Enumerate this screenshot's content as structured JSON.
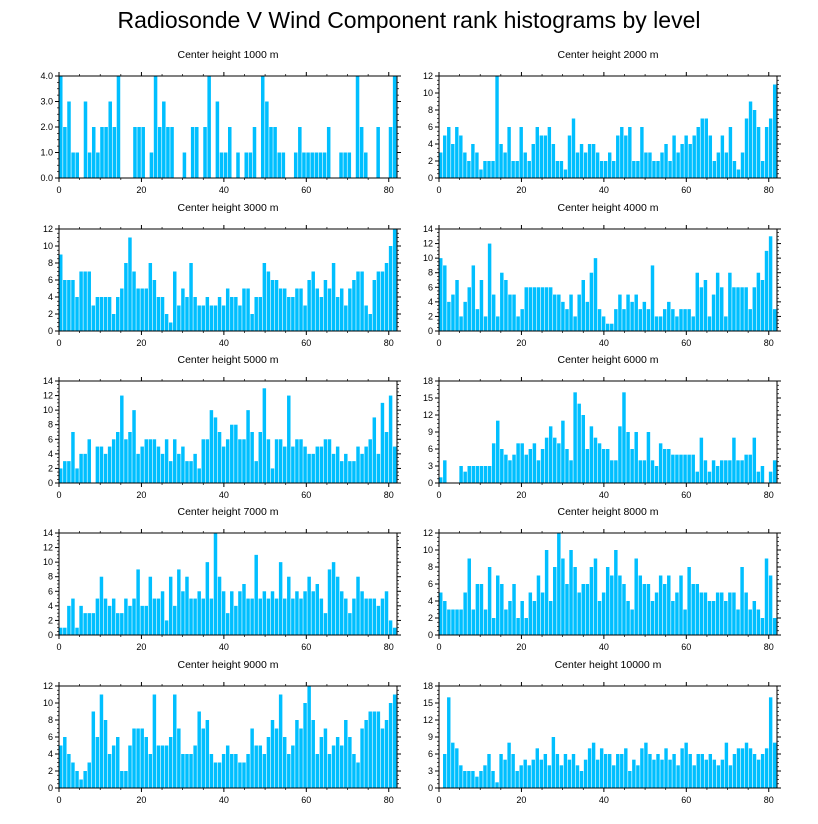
{
  "title": "Radiosonde V Wind Component rank histograms by level",
  "bar_color": "#00bfff",
  "bar_edge": "#ffffff",
  "chart_data": [
    {
      "type": "bar",
      "title": "Center height 1000 m",
      "xlim": [
        0,
        82
      ],
      "ylim": [
        0,
        4
      ],
      "yticks": [
        0,
        1,
        2,
        3,
        4
      ],
      "ytick_labels": [
        "0.0",
        "1.0",
        "2.0",
        "3.0",
        "4.0"
      ],
      "xticks": [
        0,
        20,
        40,
        60,
        80
      ],
      "xtick_labels": [
        "0",
        "20",
        "40",
        "60",
        "80"
      ],
      "values": [
        4,
        2,
        3,
        1,
        1,
        0,
        3,
        1,
        2,
        1,
        2,
        2,
        3,
        2,
        4,
        0,
        0,
        0,
        2,
        2,
        2,
        0,
        1,
        4,
        2,
        3,
        2,
        2,
        0,
        0,
        1,
        0,
        2,
        2,
        0,
        2,
        4,
        0,
        3,
        1,
        1,
        2,
        0,
        1,
        0,
        1,
        1,
        2,
        0,
        4,
        3,
        2,
        2,
        1,
        1,
        0,
        0,
        1,
        2,
        1,
        1,
        1,
        1,
        1,
        1,
        2,
        0,
        0,
        1,
        1,
        1,
        0,
        4,
        2,
        1,
        0,
        0,
        2,
        0,
        0,
        2,
        4
      ]
    },
    {
      "type": "bar",
      "title": "Center height 2000 m",
      "xlim": [
        0,
        82
      ],
      "ylim": [
        0,
        12
      ],
      "yticks": [
        0,
        2,
        4,
        6,
        8,
        10,
        12
      ],
      "ytick_labels": [
        "0",
        "2",
        "4",
        "6",
        "8",
        "10",
        "12"
      ],
      "xticks": [
        0,
        20,
        40,
        60,
        80
      ],
      "xtick_labels": [
        "0",
        "20",
        "40",
        "60",
        "80"
      ],
      "values": [
        3,
        5,
        6,
        4,
        6,
        5,
        3,
        2,
        4,
        3,
        1,
        2,
        2,
        2,
        12,
        4,
        3,
        6,
        2,
        2,
        6,
        3,
        2,
        4,
        6,
        5,
        5,
        6,
        4,
        2,
        2,
        1,
        5,
        7,
        3,
        4,
        3,
        4,
        4,
        3,
        2,
        2,
        3,
        2,
        5,
        6,
        5,
        6,
        2,
        2,
        6,
        3,
        3,
        2,
        2,
        3,
        4,
        2,
        5,
        3,
        4,
        5,
        4,
        5,
        6,
        7,
        7,
        5,
        2,
        3,
        5,
        3,
        6,
        2,
        1,
        3,
        7,
        9,
        8,
        6,
        2,
        6,
        7,
        11
      ]
    },
    {
      "type": "bar",
      "title": "Center height 3000 m",
      "xlim": [
        0,
        82
      ],
      "ylim": [
        0,
        12
      ],
      "yticks": [
        0,
        2,
        4,
        6,
        8,
        10,
        12
      ],
      "ytick_labels": [
        "0",
        "2",
        "4",
        "6",
        "8",
        "10",
        "12"
      ],
      "xticks": [
        0,
        20,
        40,
        60,
        80
      ],
      "xtick_labels": [
        "0",
        "20",
        "40",
        "60",
        "80"
      ],
      "values": [
        9,
        6,
        6,
        6,
        4,
        7,
        7,
        7,
        3,
        4,
        4,
        4,
        4,
        2,
        4,
        5,
        8,
        11,
        7,
        5,
        5,
        5,
        8,
        6,
        4,
        4,
        2,
        1,
        7,
        3,
        5,
        4,
        8,
        4,
        3,
        3,
        4,
        3,
        3,
        4,
        3,
        5,
        4,
        4,
        3,
        5,
        5,
        2,
        4,
        4,
        8,
        7,
        6,
        6,
        5,
        5,
        4,
        4,
        5,
        5,
        3,
        6,
        7,
        5,
        4,
        6,
        5,
        8,
        4,
        5,
        3,
        5,
        6,
        7,
        7,
        3,
        2,
        6,
        7,
        7,
        8,
        10,
        12
      ]
    },
    {
      "type": "bar",
      "title": "Center height 4000 m",
      "xlim": [
        0,
        82
      ],
      "ylim": [
        0,
        14
      ],
      "yticks": [
        0,
        2,
        4,
        6,
        8,
        10,
        12,
        14
      ],
      "ytick_labels": [
        "0",
        "2",
        "4",
        "6",
        "8",
        "10",
        "12",
        "14"
      ],
      "xticks": [
        0,
        20,
        40,
        60,
        80
      ],
      "xtick_labels": [
        "0",
        "20",
        "40",
        "60",
        "80"
      ],
      "values": [
        10,
        9,
        4,
        5,
        7,
        2,
        4,
        6,
        9,
        3,
        7,
        2,
        12,
        5,
        2,
        8,
        7,
        5,
        5,
        2,
        3,
        6,
        6,
        6,
        6,
        6,
        6,
        6,
        5,
        5,
        4,
        3,
        5,
        2,
        5,
        7,
        4,
        8,
        10,
        3,
        2,
        1,
        1,
        3,
        5,
        3,
        5,
        4,
        5,
        3,
        4,
        3,
        9,
        2,
        2,
        3,
        4,
        3,
        2,
        3,
        3,
        3,
        2,
        8,
        6,
        7,
        2,
        5,
        8,
        6,
        2,
        8,
        6,
        6,
        6,
        6,
        3,
        6,
        8,
        7,
        11,
        13,
        3
      ]
    },
    {
      "type": "bar",
      "title": "Center height 5000 m",
      "xlim": [
        0,
        82
      ],
      "ylim": [
        0,
        14
      ],
      "yticks": [
        0,
        2,
        4,
        6,
        8,
        10,
        12,
        14
      ],
      "ytick_labels": [
        "0",
        "2",
        "4",
        "6",
        "8",
        "10",
        "12",
        "14"
      ],
      "xticks": [
        0,
        20,
        40,
        60,
        80
      ],
      "xtick_labels": [
        "0",
        "20",
        "40",
        "60",
        "80"
      ],
      "values": [
        2,
        3,
        3,
        7,
        2,
        4,
        4,
        6,
        0,
        5,
        5,
        4,
        5,
        6,
        7,
        12,
        6,
        7,
        10,
        4,
        5,
        6,
        6,
        6,
        5,
        4,
        6,
        3,
        6,
        4,
        5,
        3,
        3,
        4,
        2,
        6,
        6,
        10,
        9,
        7,
        5,
        6,
        8,
        8,
        6,
        6,
        10,
        7,
        3,
        7,
        13,
        6,
        2,
        6,
        6,
        5,
        12,
        5,
        6,
        6,
        5,
        4,
        4,
        5,
        5,
        6,
        6,
        4,
        5,
        3,
        4,
        3,
        3,
        5,
        4,
        5,
        6,
        9,
        4,
        11,
        7,
        12,
        5
      ]
    },
    {
      "type": "bar",
      "title": "Center height 6000 m",
      "xlim": [
        0,
        82
      ],
      "ylim": [
        0,
        18
      ],
      "yticks": [
        0,
        3,
        6,
        9,
        12,
        15,
        18
      ],
      "ytick_labels": [
        "0",
        "3",
        "6",
        "9",
        "12",
        "15",
        "18"
      ],
      "xticks": [
        0,
        20,
        40,
        60,
        80
      ],
      "xtick_labels": [
        "0",
        "20",
        "40",
        "60",
        "80"
      ],
      "values": [
        1,
        4,
        0,
        0,
        0,
        3,
        2,
        3,
        3,
        3,
        3,
        3,
        3,
        7,
        11,
        6,
        5,
        4,
        5,
        7,
        7,
        5,
        6,
        7,
        4,
        6,
        8,
        10,
        8,
        7,
        11,
        6,
        4,
        16,
        14,
        12,
        6,
        10,
        8,
        7,
        6,
        6,
        4,
        4,
        10,
        16,
        9,
        6,
        9,
        4,
        4,
        9,
        4,
        3,
        7,
        6,
        6,
        5,
        5,
        5,
        5,
        5,
        5,
        2,
        8,
        4,
        2,
        4,
        3,
        4,
        4,
        4,
        8,
        4,
        4,
        5,
        5,
        8,
        2,
        3,
        0,
        2,
        4
      ]
    },
    {
      "type": "bar",
      "title": "Center height 7000 m",
      "xlim": [
        0,
        82
      ],
      "ylim": [
        0,
        14
      ],
      "yticks": [
        0,
        2,
        4,
        6,
        8,
        10,
        12,
        14
      ],
      "ytick_labels": [
        "0",
        "2",
        "4",
        "6",
        "8",
        "10",
        "12",
        "14"
      ],
      "xticks": [
        0,
        20,
        40,
        60,
        80
      ],
      "xtick_labels": [
        "0",
        "20",
        "40",
        "60",
        "80"
      ],
      "values": [
        1,
        1,
        4,
        5,
        1,
        4,
        3,
        3,
        3,
        5,
        8,
        5,
        4,
        5,
        3,
        3,
        5,
        4,
        5,
        9,
        4,
        4,
        8,
        5,
        5,
        6,
        2,
        8,
        4,
        9,
        6,
        8,
        5,
        5,
        6,
        5,
        10,
        5,
        14,
        8,
        6,
        3,
        6,
        4,
        6,
        7,
        5,
        5,
        11,
        5,
        6,
        5,
        6,
        5,
        10,
        5,
        8,
        5,
        6,
        5,
        6,
        8,
        6,
        7,
        5,
        3,
        9,
        10,
        8,
        6,
        5,
        3,
        5,
        8,
        6,
        5,
        5,
        5,
        4,
        5,
        6,
        2,
        1
      ]
    },
    {
      "type": "bar",
      "title": "Center height 8000 m",
      "xlim": [
        0,
        82
      ],
      "ylim": [
        0,
        12
      ],
      "yticks": [
        0,
        2,
        4,
        6,
        8,
        10,
        12
      ],
      "ytick_labels": [
        "0",
        "2",
        "4",
        "6",
        "8",
        "10",
        "12"
      ],
      "xticks": [
        0,
        20,
        40,
        60,
        80
      ],
      "xtick_labels": [
        "0",
        "20",
        "40",
        "60",
        "80"
      ],
      "values": [
        5,
        4,
        3,
        3,
        3,
        3,
        5,
        9,
        3,
        6,
        6,
        3,
        8,
        2,
        7,
        6,
        3,
        4,
        6,
        2,
        4,
        2,
        5,
        4,
        7,
        5,
        10,
        4,
        8,
        12,
        9,
        6,
        10,
        8,
        5,
        6,
        6,
        8,
        9,
        4,
        5,
        8,
        7,
        10,
        7,
        6,
        4,
        3,
        9,
        7,
        6,
        6,
        4,
        5,
        7,
        6,
        7,
        4,
        5,
        7,
        3,
        8,
        6,
        6,
        5,
        5,
        4,
        4,
        5,
        5,
        4,
        5,
        5,
        3,
        8,
        5,
        3,
        4,
        3,
        2,
        9,
        7,
        2
      ]
    },
    {
      "type": "bar",
      "title": "Center height 9000 m",
      "xlim": [
        0,
        82
      ],
      "ylim": [
        0,
        12
      ],
      "yticks": [
        0,
        2,
        4,
        6,
        8,
        10,
        12
      ],
      "ytick_labels": [
        "0",
        "2",
        "4",
        "6",
        "8",
        "10",
        "12"
      ],
      "xticks": [
        0,
        20,
        40,
        60,
        80
      ],
      "xtick_labels": [
        "0",
        "20",
        "40",
        "60",
        "80"
      ],
      "values": [
        5,
        6,
        4,
        3,
        2,
        1,
        2,
        3,
        9,
        6,
        11,
        8,
        4,
        5,
        6,
        2,
        2,
        5,
        7,
        7,
        7,
        6,
        4,
        11,
        5,
        5,
        5,
        6,
        11,
        7,
        4,
        4,
        4,
        5,
        9,
        7,
        8,
        4,
        3,
        3,
        4,
        5,
        4,
        4,
        3,
        3,
        4,
        7,
        5,
        5,
        4,
        6,
        8,
        7,
        11,
        6,
        4,
        5,
        8,
        7,
        10,
        12,
        8,
        4,
        6,
        7,
        4,
        5,
        6,
        5,
        8,
        6,
        4,
        3,
        7,
        8,
        9,
        9,
        9,
        7,
        8,
        10,
        11
      ]
    },
    {
      "type": "bar",
      "title": "Center height 10000 m",
      "xlim": [
        0,
        82
      ],
      "ylim": [
        0,
        18
      ],
      "yticks": [
        0,
        3,
        6,
        9,
        12,
        15,
        18
      ],
      "ytick_labels": [
        "0",
        "3",
        "6",
        "9",
        "12",
        "15",
        "18"
      ],
      "xticks": [
        0,
        20,
        40,
        60,
        80
      ],
      "xtick_labels": [
        "0",
        "20",
        "40",
        "60",
        "80"
      ],
      "values": [
        0,
        6,
        16,
        8,
        7,
        4,
        3,
        3,
        3,
        2,
        3,
        4,
        6,
        3,
        1,
        6,
        5,
        8,
        6,
        3,
        4,
        5,
        4,
        5,
        7,
        5,
        6,
        4,
        9,
        6,
        4,
        6,
        5,
        6,
        4,
        3,
        5,
        7,
        8,
        5,
        7,
        6,
        6,
        4,
        6,
        6,
        7,
        3,
        5,
        4,
        7,
        8,
        6,
        5,
        6,
        5,
        7,
        5,
        6,
        4,
        7,
        8,
        6,
        4,
        6,
        6,
        5,
        6,
        5,
        4,
        5,
        8,
        4,
        6,
        7,
        7,
        8,
        7,
        6,
        5,
        6,
        7,
        16,
        8
      ]
    }
  ]
}
